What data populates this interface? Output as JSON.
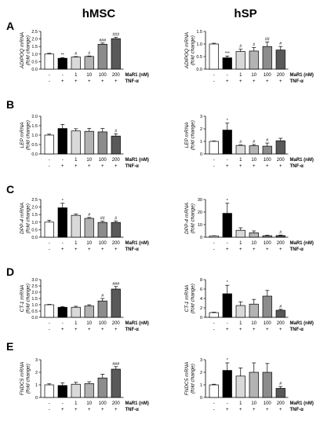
{
  "column_titles": [
    "hMSC",
    "hSP"
  ],
  "row_letters": [
    "A",
    "B",
    "C",
    "D",
    "E"
  ],
  "treatment_table": {
    "row1_label": "MaR1 (nM)",
    "row2_label": "TNF-α",
    "row1_values": [
      "-",
      "-",
      "1",
      "10",
      "100",
      "200"
    ],
    "row2_values": [
      "-",
      "+",
      "+",
      "+",
      "+",
      "+"
    ]
  },
  "bar_fill_colors": [
    "#ffffff",
    "#000000",
    "#d9d9d9",
    "#b3b3b3",
    "#8c8c8c",
    "#595959"
  ],
  "chart_data": [
    {
      "type": "bar",
      "panel": "A",
      "cell": "hMSC",
      "ylabel": "ADIPOQ mRNA\n(fold change)",
      "yticks": [
        0,
        0.5,
        1.0,
        1.5,
        2.0,
        2.5
      ],
      "tick_decimals": 1,
      "ylim": [
        0,
        2.5
      ],
      "categories": [
        "-/-",
        "-/+",
        "1/+",
        "10/+",
        "100/+",
        "200/+"
      ],
      "values": [
        1.0,
        0.72,
        0.8,
        0.84,
        1.65,
        2.02
      ],
      "errors": [
        0.05,
        0.04,
        0.03,
        0.03,
        0.08,
        0.09
      ],
      "annotations": [
        "",
        "**",
        "#",
        "#",
        "###",
        "###"
      ]
    },
    {
      "type": "bar",
      "panel": "A",
      "cell": "hSP",
      "ylabel": "ADIPOQ mRNA\n(fold change)",
      "yticks": [
        0.0,
        0.5,
        1.0,
        1.5
      ],
      "tick_decimals": 1,
      "ylim": [
        0,
        1.5
      ],
      "categories": [
        "-/-",
        "-/+",
        "1/+",
        "10/+",
        "100/+",
        "200/+"
      ],
      "values": [
        1.0,
        0.45,
        0.7,
        0.72,
        0.9,
        0.76
      ],
      "errors": [
        0.03,
        0.07,
        0.09,
        0.14,
        0.18,
        0.14
      ],
      "annotations": [
        "",
        "***",
        "#",
        "#",
        "##",
        "#"
      ]
    },
    {
      "type": "bar",
      "panel": "B",
      "cell": "hMSC",
      "ylabel": "LEP mRNA\n(fold change)",
      "yticks": [
        0.0,
        0.5,
        1.0,
        1.5,
        2.0
      ],
      "tick_decimals": 1,
      "ylim": [
        0,
        2.0
      ],
      "categories": [
        "-/-",
        "-/+",
        "1/+",
        "10/+",
        "100/+",
        "200/+"
      ],
      "values": [
        1.0,
        1.35,
        1.22,
        1.2,
        1.17,
        0.95
      ],
      "errors": [
        0.05,
        0.22,
        0.12,
        0.15,
        0.18,
        0.12
      ],
      "annotations": [
        "",
        "",
        "",
        "",
        "",
        "#"
      ]
    },
    {
      "type": "bar",
      "panel": "B",
      "cell": "hSP",
      "ylabel": "LEP mRNA\n(fold change)",
      "yticks": [
        0,
        1,
        2,
        3
      ],
      "tick_decimals": 0,
      "ylim": [
        0,
        3
      ],
      "categories": [
        "-/-",
        "-/+",
        "1/+",
        "10/+",
        "100/+",
        "200/+"
      ],
      "values": [
        1.0,
        1.9,
        0.68,
        0.65,
        0.62,
        1.05
      ],
      "errors": [
        0.03,
        0.55,
        0.04,
        0.1,
        0.25,
        0.2
      ],
      "annotations": [
        "",
        "*",
        "#",
        "#",
        "#",
        ""
      ]
    },
    {
      "type": "bar",
      "panel": "C",
      "cell": "hMSC",
      "ylabel": "DPP-4 mRNA\n(fold change)",
      "yticks": [
        0.0,
        0.5,
        1.0,
        1.5,
        2.0,
        2.5
      ],
      "tick_decimals": 1,
      "ylim": [
        0,
        2.5
      ],
      "categories": [
        "-/-",
        "-/+",
        "1/+",
        "10/+",
        "100/+",
        "200/+"
      ],
      "values": [
        1.0,
        1.95,
        1.45,
        1.25,
        0.98,
        0.98
      ],
      "errors": [
        0.12,
        0.3,
        0.08,
        0.06,
        0.08,
        0.1
      ],
      "annotations": [
        "",
        "*",
        "",
        "#",
        "##",
        "#"
      ]
    },
    {
      "type": "bar",
      "panel": "C",
      "cell": "hSP",
      "ylabel": "DPP-4 mRNA\n(fold change)",
      "yticks": [
        0,
        10,
        20,
        30
      ],
      "tick_decimals": 0,
      "ylim": [
        0,
        30
      ],
      "categories": [
        "-/-",
        "-/+",
        "1/+",
        "10/+",
        "100/+",
        "200/+"
      ],
      "values": [
        1.0,
        19.0,
        5.5,
        3.5,
        1.2,
        1.3
      ],
      "errors": [
        0.2,
        8.0,
        2.0,
        1.5,
        0.4,
        0.4
      ],
      "annotations": [
        "",
        "*",
        "",
        "",
        "",
        "#"
      ]
    },
    {
      "type": "bar",
      "panel": "D",
      "cell": "hMSC",
      "ylabel": "CT-1 mRNA\n(fold change)",
      "yticks": [
        0.0,
        0.5,
        1.0,
        1.5,
        2.0,
        2.5,
        3.0
      ],
      "tick_decimals": 1,
      "ylim": [
        0,
        3.0
      ],
      "categories": [
        "-/-",
        "-/+",
        "1/+",
        "10/+",
        "100/+",
        "200/+"
      ],
      "values": [
        1.0,
        0.8,
        0.8,
        0.9,
        1.3,
        2.25
      ],
      "errors": [
        0.03,
        0.06,
        0.08,
        0.1,
        0.2,
        0.2
      ],
      "annotations": [
        "",
        "",
        "",
        "",
        "#",
        "###"
      ]
    },
    {
      "type": "bar",
      "panel": "D",
      "cell": "hSP",
      "ylabel": "CT-1 mRNA\n(fold change)",
      "yticks": [
        0,
        2,
        4,
        6,
        8
      ],
      "tick_decimals": 0,
      "ylim": [
        0,
        8
      ],
      "categories": [
        "-/-",
        "-/+",
        "1/+",
        "10/+",
        "100/+",
        "200/+"
      ],
      "values": [
        1.0,
        5.0,
        2.5,
        2.8,
        4.5,
        1.5
      ],
      "errors": [
        0.1,
        1.8,
        0.8,
        1.0,
        1.2,
        0.2
      ],
      "annotations": [
        "",
        "*",
        "",
        "",
        "",
        "#"
      ]
    },
    {
      "type": "bar",
      "panel": "E",
      "cell": "hMSC",
      "ylabel": "FNDC5 mRNA\n(fold change)",
      "yticks": [
        0,
        1,
        2,
        3
      ],
      "tick_decimals": 0,
      "ylim": [
        0,
        3
      ],
      "categories": [
        "-/-",
        "-/+",
        "1/+",
        "10/+",
        "100/+",
        "200/+"
      ],
      "values": [
        1.0,
        0.95,
        1.05,
        1.1,
        1.55,
        2.25
      ],
      "errors": [
        0.08,
        0.2,
        0.15,
        0.15,
        0.3,
        0.2
      ],
      "annotations": [
        "",
        "",
        "",
        "",
        "",
        "###"
      ]
    },
    {
      "type": "bar",
      "panel": "E",
      "cell": "hSP",
      "ylabel": "FNDC5 mRNA\n(fold change)",
      "yticks": [
        0,
        1,
        2,
        3
      ],
      "tick_decimals": 0,
      "ylim": [
        0,
        3
      ],
      "categories": [
        "-/-",
        "-/+",
        "1/+",
        "10/+",
        "100/+",
        "200/+"
      ],
      "values": [
        1.0,
        2.15,
        1.7,
        2.0,
        2.0,
        0.72
      ],
      "errors": [
        0.05,
        0.6,
        0.65,
        0.75,
        0.7,
        0.15
      ],
      "annotations": [
        "",
        "*",
        "",
        "",
        "",
        "#"
      ]
    }
  ]
}
